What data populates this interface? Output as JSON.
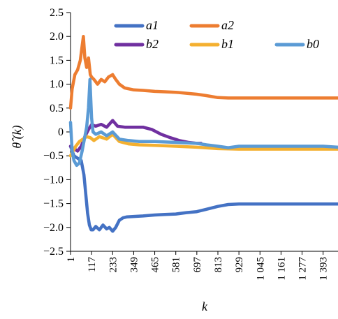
{
  "chart_data": {
    "type": "line",
    "title": "",
    "xlabel": "k",
    "ylabel": "θ̂ (k)",
    "xlim": [
      1,
      1475
    ],
    "ylim": [
      -2.5,
      2.5
    ],
    "y_ticks": [
      2.5,
      2.0,
      1.5,
      1.0,
      0.5,
      0,
      -0.5,
      -1.0,
      -1.5,
      -2.0,
      -2.5
    ],
    "y_tick_labels": [
      "2.5",
      "2.0",
      "1.5",
      "1.0",
      "0.5",
      "0",
      "−0.5",
      "−1.0",
      "−1.5",
      "−2.0",
      "−2.5"
    ],
    "x_ticks": [
      1,
      117,
      233,
      349,
      465,
      581,
      697,
      813,
      929,
      1045,
      1161,
      1277,
      1393
    ],
    "x_tick_labels": [
      "1",
      "117",
      "233",
      "349",
      "465",
      "581",
      "697",
      "813",
      "929",
      "1 045",
      "1 161",
      "1 277",
      "1 393"
    ],
    "grid": false,
    "legend_position": "top",
    "legend": [
      {
        "label": "a1",
        "color": "#4472c4"
      },
      {
        "label": "a2",
        "color": "#ed7d31"
      },
      {
        "label": "b2",
        "color": "#7030a0"
      },
      {
        "label": "b1",
        "color": "#f4b030"
      },
      {
        "label": "b0",
        "color": "#5b9bd5"
      }
    ],
    "series": [
      {
        "name": "a1",
        "color": "#4472c4",
        "x": [
          1,
          20,
          40,
          60,
          75,
          85,
          95,
          105,
          115,
          125,
          140,
          160,
          180,
          200,
          215,
          233,
          250,
          270,
          290,
          310,
          350,
          400,
          465,
          520,
          581,
          640,
          697,
          750,
          813,
          870,
          929,
          1000,
          1100,
          1200,
          1300,
          1400,
          1475
        ],
        "y": [
          -0.3,
          -0.5,
          -0.55,
          -0.6,
          -0.9,
          -1.3,
          -1.7,
          -1.95,
          -2.05,
          -2.05,
          -1.98,
          -2.05,
          -1.95,
          -2.03,
          -2.0,
          -2.08,
          -2.0,
          -1.85,
          -1.8,
          -1.78,
          -1.77,
          -1.76,
          -1.74,
          -1.73,
          -1.72,
          -1.69,
          -1.67,
          -1.62,
          -1.56,
          -1.52,
          -1.51,
          -1.51,
          -1.51,
          -1.51,
          -1.51,
          -1.51,
          -1.51
        ]
      },
      {
        "name": "a2",
        "color": "#ed7d31",
        "x": [
          1,
          10,
          25,
          40,
          55,
          65,
          72,
          80,
          90,
          100,
          110,
          117,
          130,
          150,
          170,
          190,
          210,
          233,
          250,
          270,
          300,
          350,
          400,
          465,
          520,
          581,
          640,
          697,
          750,
          813,
          870,
          929,
          1045,
          1161,
          1277,
          1393,
          1475
        ],
        "y": [
          0.5,
          0.9,
          1.2,
          1.3,
          1.5,
          1.8,
          2.0,
          1.55,
          1.35,
          1.55,
          1.2,
          1.15,
          1.1,
          1.0,
          1.1,
          1.05,
          1.15,
          1.2,
          1.1,
          1.0,
          0.92,
          0.88,
          0.87,
          0.85,
          0.84,
          0.83,
          0.81,
          0.79,
          0.76,
          0.72,
          0.71,
          0.71,
          0.71,
          0.71,
          0.71,
          0.71,
          0.71
        ]
      },
      {
        "name": "b2",
        "color": "#7030a0",
        "x": [
          1,
          20,
          40,
          60,
          80,
          100,
          117,
          140,
          170,
          200,
          233,
          260,
          300,
          350,
          400,
          450,
          500,
          550,
          600,
          650,
          697,
          720
        ],
        "y": [
          -0.3,
          -0.35,
          -0.4,
          -0.3,
          -0.1,
          0.05,
          0.15,
          0.12,
          0.16,
          0.1,
          0.24,
          0.12,
          0.1,
          0.1,
          0.1,
          0.05,
          -0.05,
          -0.12,
          -0.18,
          -0.22,
          -0.24,
          -0.24
        ]
      },
      {
        "name": "b1",
        "color": "#f4b030",
        "x": [
          1,
          15,
          30,
          50,
          70,
          90,
          110,
          130,
          160,
          200,
          233,
          270,
          320,
          380,
          465,
          581,
          697,
          813,
          929,
          1045,
          1161,
          1277,
          1393,
          1475
        ],
        "y": [
          -0.5,
          -0.4,
          -0.3,
          -0.2,
          -0.15,
          -0.1,
          -0.12,
          -0.18,
          -0.1,
          -0.15,
          -0.05,
          -0.2,
          -0.25,
          -0.27,
          -0.28,
          -0.3,
          -0.32,
          -0.35,
          -0.36,
          -0.36,
          -0.36,
          -0.36,
          -0.36,
          -0.36
        ]
      },
      {
        "name": "b0",
        "color": "#5b9bd5",
        "x": [
          1,
          10,
          20,
          35,
          50,
          65,
          80,
          90,
          100,
          108,
          117,
          125,
          140,
          170,
          200,
          233,
          270,
          320,
          380,
          465,
          581,
          697,
          750,
          813,
          870,
          929,
          1045,
          1161,
          1277,
          1393,
          1475
        ],
        "y": [
          0.2,
          -0.4,
          -0.6,
          -0.7,
          -0.65,
          -0.4,
          -0.1,
          0.1,
          0.5,
          1.1,
          0.3,
          0.0,
          -0.05,
          0.0,
          -0.08,
          0.0,
          -0.15,
          -0.18,
          -0.2,
          -0.2,
          -0.22,
          -0.24,
          -0.27,
          -0.3,
          -0.33,
          -0.3,
          -0.3,
          -0.3,
          -0.3,
          -0.3,
          -0.32
        ]
      }
    ]
  }
}
